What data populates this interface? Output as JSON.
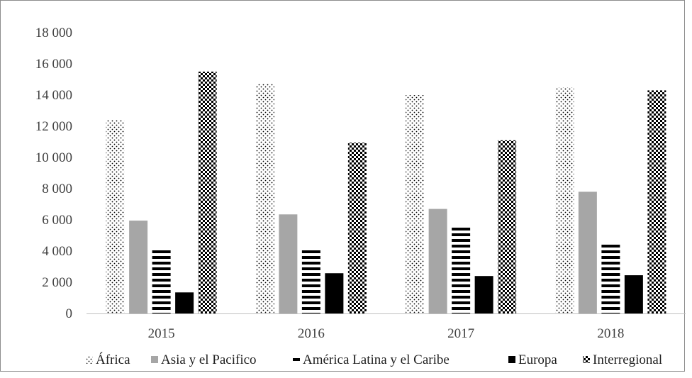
{
  "chart_data": {
    "type": "bar",
    "title": "",
    "xlabel": "",
    "ylabel": "",
    "ylim": [
      0,
      18000
    ],
    "y_ticks": [
      0,
      2000,
      4000,
      6000,
      8000,
      10000,
      12000,
      14000,
      16000,
      18000
    ],
    "y_tick_labels": [
      "0",
      "2 000",
      "4 000",
      "6 000",
      "8 000",
      "10 000",
      "12 000",
      "14 000",
      "16 000",
      "18 000"
    ],
    "categories": [
      "2015",
      "2016",
      "2017",
      "2018"
    ],
    "series": [
      {
        "name": "África",
        "values": [
          12400,
          14700,
          14000,
          14500
        ],
        "pattern": "dots"
      },
      {
        "name": "Asia y el Pacifico",
        "values": [
          5950,
          6350,
          6700,
          7800
        ],
        "pattern": "solid-gray"
      },
      {
        "name": "América Latina y el Caribe",
        "values": [
          4050,
          4100,
          5600,
          4500
        ],
        "pattern": "hstripes"
      },
      {
        "name": "Europa",
        "values": [
          1350,
          2580,
          2400,
          2450
        ],
        "pattern": "solid-black"
      },
      {
        "name": "Interregional",
        "values": [
          15500,
          10950,
          11100,
          14300
        ],
        "pattern": "checker"
      }
    ],
    "grid": false,
    "legend_position": "bottom",
    "colors": {
      "axis": "#bfbfbf",
      "gray": "#a6a6a6",
      "black": "#000000"
    }
  }
}
